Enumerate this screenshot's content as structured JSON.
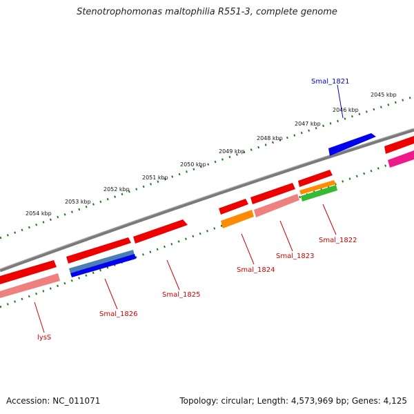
{
  "title": "Stenotrophomonas maltophilia R551-3, complete genome",
  "footer": {
    "accession": "Accession: NC_011071",
    "summary": "Topology: circular; Length: 4,573,969 bp; Genes: 4,125"
  },
  "colors": {
    "backbone": "#808080",
    "tick_ring": "#1a7a1a",
    "label_red": "#cc0000",
    "label_blue": "#0000cc"
  },
  "scale_labels": [
    "2045 kbp",
    "2046 kbp",
    "2047 kbp",
    "2048 kbp",
    "2049 kbp",
    "2050 kbp",
    "2051 kbp",
    "2052 kbp",
    "2053 kbp",
    "2054 kbp"
  ],
  "gene_labels": [
    {
      "text": "Smal_1821",
      "color": "#0000cc"
    },
    {
      "text": "Smal_1822",
      "color": "#cc0000"
    },
    {
      "text": "Smal_1823",
      "color": "#cc0000"
    },
    {
      "text": "Smal_1824",
      "color": "#cc0000"
    },
    {
      "text": "Smal_1825",
      "color": "#cc0000"
    },
    {
      "text": "Smal_1826",
      "color": "#cc0000"
    },
    {
      "text": "lysS",
      "color": "#cc0000"
    }
  ]
}
